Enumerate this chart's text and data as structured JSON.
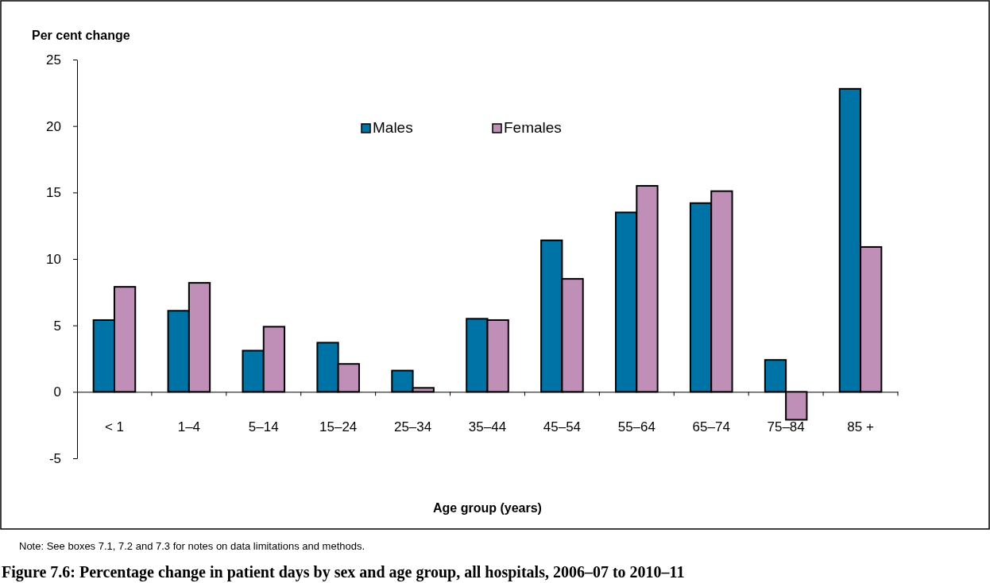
{
  "chart_data": {
    "type": "bar",
    "title": "Figure 7.6: Percentage change in patient days by sex and age group, all hospitals, 2006–07 to 2010–11",
    "ylabel": "Per cent change",
    "xlabel": "Age group (years)",
    "categories": [
      "< 1",
      "1–4",
      "5–14",
      "15–24",
      "25–34",
      "35–44",
      "45–54",
      "55–64",
      "65–74",
      "75–84",
      "85 +"
    ],
    "series": [
      {
        "name": "Males",
        "color": "#0073a6",
        "values": [
          5.4,
          6.1,
          3.1,
          3.7,
          1.6,
          5.5,
          11.4,
          13.5,
          14.2,
          2.4,
          22.8
        ]
      },
      {
        "name": "Females",
        "color": "#bf8fb8",
        "values": [
          7.9,
          8.2,
          4.9,
          2.1,
          0.3,
          5.4,
          8.5,
          15.5,
          15.1,
          -2.1,
          10.9
        ]
      }
    ],
    "ylim": [
      -5,
      25
    ],
    "yticks": [
      -5,
      0,
      5,
      10,
      15,
      20,
      25
    ],
    "grid": false,
    "legend": "top",
    "annotations": [
      "Note: See boxes 7.1, 7.2 and 7.3 for notes on data limitations and methods."
    ]
  }
}
